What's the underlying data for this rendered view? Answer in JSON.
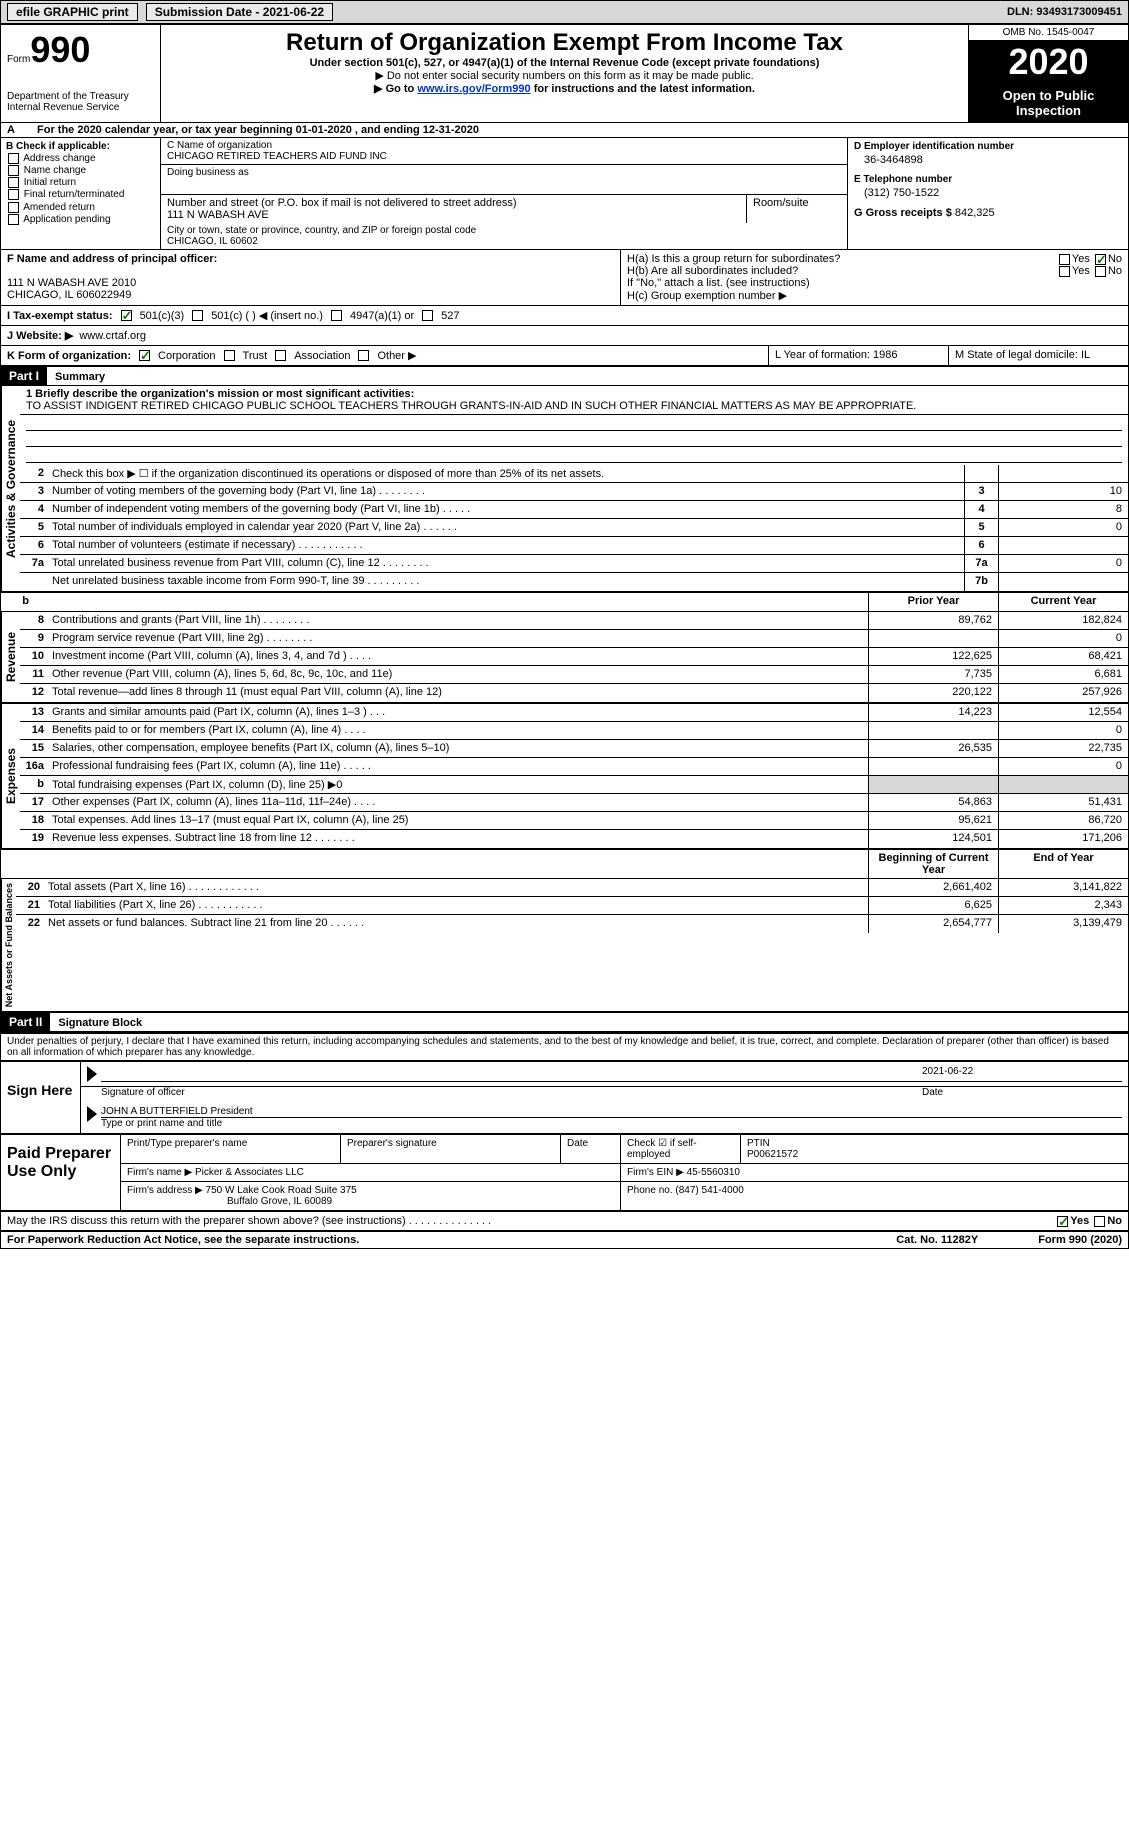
{
  "topbar": {
    "efile": "efile GRAPHIC print",
    "submission": "Submission Date - 2021-06-22",
    "dln": "DLN: 93493173009451"
  },
  "header": {
    "form_label": "Form",
    "form_num": "990",
    "dept": "Department of the Treasury\nInternal Revenue Service",
    "title": "Return of Organization Exempt From Income Tax",
    "subtitle": "Under section 501(c), 527, or 4947(a)(1) of the Internal Revenue Code (except private foundations)",
    "note1": "▶ Do not enter social security numbers on this form as it may be made public.",
    "note2_pre": "▶ Go to ",
    "note2_link": "www.irs.gov/Form990",
    "note2_post": " for instructions and the latest information.",
    "omb": "OMB No. 1545-0047",
    "year": "2020",
    "open": "Open to Public Inspection"
  },
  "row_a_left": "A",
  "row_a": "For the 2020 calendar year, or tax year beginning 01-01-2020    , and ending 12-31-2020",
  "section_b": {
    "label": "B Check if applicable:",
    "opts": [
      "Address change",
      "Name change",
      "Initial return",
      "Final return/terminated",
      "Amended return",
      "Application pending"
    ]
  },
  "section_c": {
    "name_label": "C Name of organization",
    "name": "CHICAGO RETIRED TEACHERS AID FUND INC",
    "dba_label": "Doing business as",
    "street_label": "Number and street (or P.O. box if mail is not delivered to street address)",
    "street": "111 N WABASH AVE",
    "room_label": "Room/suite",
    "city_label": "City or town, state or province, country, and ZIP or foreign postal code",
    "city": "CHICAGO, IL  60602"
  },
  "section_d": {
    "ein_label": "D Employer identification number",
    "ein": "36-3464898",
    "phone_label": "E Telephone number",
    "phone": "(312) 750-1522",
    "gross_label": "G Gross receipts $",
    "gross": "842,325"
  },
  "section_f": {
    "label": "F  Name and address of principal officer:",
    "addr1": "111 N WABASH AVE 2010",
    "addr2": "CHICAGO, IL  606022949"
  },
  "section_h": {
    "ha": "H(a)  Is this a group return for subordinates?",
    "hb": "H(b)  Are all subordinates included?",
    "hb_note": "If \"No,\" attach a list. (see instructions)",
    "hc": "H(c)  Group exemption number ▶",
    "yes": "Yes",
    "no": "No"
  },
  "row_i": {
    "label": "I   Tax-exempt status:",
    "o1": "501(c)(3)",
    "o2": "501(c) (  ) ◀ (insert no.)",
    "o3": "4947(a)(1) or",
    "o4": "527"
  },
  "row_j": {
    "label": "J   Website: ▶",
    "val": "www.crtaf.org"
  },
  "row_k": {
    "label": "K Form of organization:",
    "o1": "Corporation",
    "o2": "Trust",
    "o3": "Association",
    "o4": "Other ▶"
  },
  "row_l": "L Year of formation: 1986",
  "row_m": "M State of legal domicile: IL",
  "part1": {
    "hdr": "Part I",
    "title": "Summary"
  },
  "mission_label": "1  Briefly describe the organization's mission or most significant activities:",
  "mission": "TO ASSIST INDIGENT RETIRED CHICAGO PUBLIC SCHOOL TEACHERS THROUGH GRANTS-IN-AID AND IN SUCH OTHER FINANCIAL MATTERS AS MAY BE APPROPRIATE.",
  "gov_lines": [
    {
      "n": "2",
      "t": "Check this box ▶ ☐  if the organization discontinued its operations or disposed of more than 25% of its net assets.",
      "box": "",
      "v": ""
    },
    {
      "n": "3",
      "t": "Number of voting members of the governing body (Part VI, line 1a)  .    .    .    .    .    .    .    .",
      "box": "3",
      "v": "10"
    },
    {
      "n": "4",
      "t": "Number of independent voting members of the governing body (Part VI, line 1b)    .    .    .    .    .",
      "box": "4",
      "v": "8"
    },
    {
      "n": "5",
      "t": "Total number of individuals employed in calendar year 2020 (Part V, line 2a)   .    .    .    .    .    .",
      "box": "5",
      "v": "0"
    },
    {
      "n": "6",
      "t": "Total number of volunteers (estimate if necessary)   .    .    .    .    .    .    .    .    .    .    .",
      "box": "6",
      "v": ""
    },
    {
      "n": "7a",
      "t": "Total unrelated business revenue from Part VIII, column (C), line 12   .    .    .    .    .    .    .    .",
      "box": "7a",
      "v": "0"
    },
    {
      "n": "",
      "t": "Net unrelated business taxable income from Form 990-T, line 39   .    .    .    .    .    .    .    .    .",
      "box": "7b",
      "v": ""
    }
  ],
  "col_headers": {
    "a": "b",
    "py": "Prior Year",
    "cy": "Current Year",
    "by": "Beginning of Current Year",
    "ey": "End of Year"
  },
  "rev_lines": [
    {
      "n": "8",
      "t": "Contributions and grants (Part VIII, line 1h)    .    .    .    .    .    .    .    .",
      "py": "89,762",
      "cy": "182,824"
    },
    {
      "n": "9",
      "t": "Program service revenue (Part VIII, line 2g)    .    .    .    .    .    .    .    .",
      "py": "",
      "cy": "0"
    },
    {
      "n": "10",
      "t": "Investment income (Part VIII, column (A), lines 3, 4, and 7d )    .    .    .    .",
      "py": "122,625",
      "cy": "68,421"
    },
    {
      "n": "11",
      "t": "Other revenue (Part VIII, column (A), lines 5, 6d, 8c, 9c, 10c, and 11e)",
      "py": "7,735",
      "cy": "6,681"
    },
    {
      "n": "12",
      "t": "Total revenue—add lines 8 through 11 (must equal Part VIII, column (A), line 12)",
      "py": "220,122",
      "cy": "257,926"
    }
  ],
  "exp_lines": [
    {
      "n": "13",
      "t": "Grants and similar amounts paid (Part IX, column (A), lines 1–3 )   .    .    .",
      "py": "14,223",
      "cy": "12,554"
    },
    {
      "n": "14",
      "t": "Benefits paid to or for members (Part IX, column (A), line 4)   .    .    .    .",
      "py": "",
      "cy": "0"
    },
    {
      "n": "15",
      "t": "Salaries, other compensation, employee benefits (Part IX, column (A), lines 5–10)",
      "py": "26,535",
      "cy": "22,735"
    },
    {
      "n": "16a",
      "t": "Professional fundraising fees (Part IX, column (A), line 11e)    .    .    .    .    .",
      "py": "",
      "cy": "0"
    },
    {
      "n": "b",
      "t": "Total fundraising expenses (Part IX, column (D), line 25) ▶0",
      "py": "shade",
      "cy": "shade"
    },
    {
      "n": "17",
      "t": "Other expenses (Part IX, column (A), lines 11a–11d, 11f–24e)    .    .    .    .",
      "py": "54,863",
      "cy": "51,431"
    },
    {
      "n": "18",
      "t": "Total expenses. Add lines 13–17 (must equal Part IX, column (A), line 25)",
      "py": "95,621",
      "cy": "86,720"
    },
    {
      "n": "19",
      "t": "Revenue less expenses. Subtract line 18 from line 12  .    .    .    .    .    .    .",
      "py": "124,501",
      "cy": "171,206"
    }
  ],
  "na_lines": [
    {
      "n": "20",
      "t": "Total assets (Part X, line 16)   .    .    .    .    .    .    .    .    .    .    .    .",
      "py": "2,661,402",
      "cy": "3,141,822"
    },
    {
      "n": "21",
      "t": "Total liabilities (Part X, line 26)   .    .    .    .    .    .    .    .    .    .    .",
      "py": "6,625",
      "cy": "2,343"
    },
    {
      "n": "22",
      "t": "Net assets or fund balances. Subtract line 21 from line 20  .    .    .    .    .    .",
      "py": "2,654,777",
      "cy": "3,139,479"
    }
  ],
  "verts": {
    "gov": "Activities & Governance",
    "rev": "Revenue",
    "exp": "Expenses",
    "na": "Net Assets or Fund Balances"
  },
  "part2": {
    "hdr": "Part II",
    "title": "Signature Block"
  },
  "penalty": "Under penalties of perjury, I declare that I have examined this return, including accompanying schedules and statements, and to the best of my knowledge and belief, it is true, correct, and complete. Declaration of preparer (other than officer) is based on all information of which preparer has any knowledge.",
  "sign": {
    "here": "Sign Here",
    "sig_label": "Signature of officer",
    "date": "2021-06-22",
    "date_label": "Date",
    "name": "JOHN A BUTTERFIELD  President",
    "name_label": "Type or print name and title"
  },
  "preparer": {
    "label": "Paid Preparer Use Only",
    "h1": "Print/Type preparer's name",
    "h2": "Preparer's signature",
    "h3": "Date",
    "h4": "Check ☑ if self-employed",
    "h5": "PTIN",
    "ptin": "P00621572",
    "firm_label": "Firm's name   ▶",
    "firm": "Picker & Associates LLC",
    "ein_label": "Firm's EIN ▶",
    "ein": "45-5560310",
    "addr_label": "Firm's address ▶",
    "addr": "750 W Lake Cook Road Suite 375",
    "addr2": "Buffalo Grove, IL  60089",
    "phone_label": "Phone no.",
    "phone": "(847) 541-4000"
  },
  "discuss": "May the IRS discuss this return with the preparer shown above? (see instructions)  .    .    .    .    .    .    .    .    .    .    .    .    .    .",
  "footer": {
    "pra": "For Paperwork Reduction Act Notice, see the separate instructions.",
    "cat": "Cat. No. 11282Y",
    "form": "Form 990 (2020)"
  }
}
